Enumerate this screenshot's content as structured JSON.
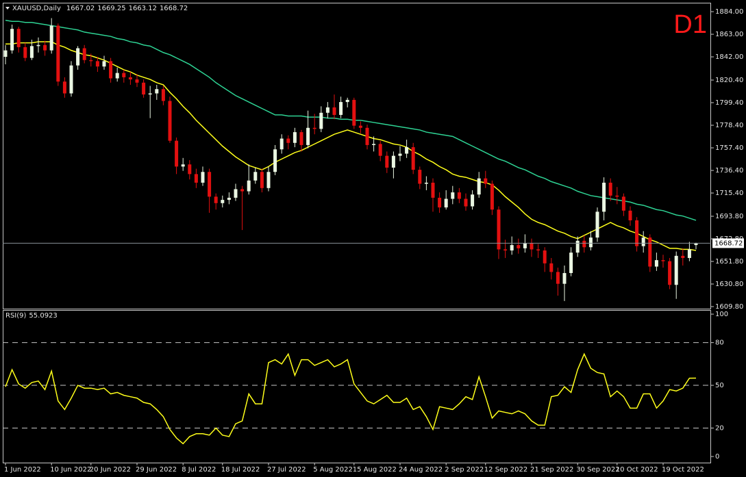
{
  "header": {
    "symbol": "XAUUSD,Daily"
  },
  "timeframe_label": "D1",
  "chart_data": [
    {
      "type": "candlestick",
      "categories": [
        "1 Jun 2022",
        null,
        null,
        null,
        null,
        null,
        null,
        "10 Jun 2022",
        null,
        null,
        null,
        null,
        null,
        "20 Jun 2022",
        null,
        null,
        null,
        null,
        null,
        null,
        "29 Jun 2022",
        null,
        null,
        null,
        null,
        null,
        null,
        "8 Jul 2022",
        null,
        null,
        null,
        null,
        null,
        "18 Jul 2022",
        null,
        null,
        null,
        null,
        null,
        null,
        "27 Jul 2022",
        null,
        null,
        null,
        null,
        null,
        null,
        "5 Aug 2022",
        null,
        null,
        null,
        null,
        null,
        "15 Aug 2022",
        null,
        null,
        null,
        null,
        null,
        null,
        "24 Aug 2022",
        null,
        null,
        null,
        null,
        null,
        null,
        "2 Sep 2022",
        null,
        null,
        null,
        null,
        null,
        "12 Sep 2022",
        null,
        null,
        null,
        null,
        null,
        null,
        "21 Sep 2022",
        null,
        null,
        null,
        null,
        null,
        null,
        "30 Sep 2022",
        null,
        null,
        null,
        null,
        null,
        "10 Oct 2022",
        null,
        null,
        null,
        null,
        null,
        null,
        "19 Oct 2022",
        null,
        null,
        null,
        null,
        null
      ],
      "open": [
        1842,
        1848,
        1868,
        1851,
        1841,
        1852,
        1853,
        1848,
        1871,
        1819,
        1808,
        1834,
        1850,
        1839,
        1838,
        1833,
        1838,
        1822,
        1827,
        1823,
        1821,
        1818,
        1807,
        1808,
        1812,
        1801,
        1764,
        1740,
        1742,
        1733,
        1725,
        1735,
        1712,
        1706,
        1709,
        1711,
        1719,
        1717,
        1727,
        1735,
        1720,
        1735,
        1756,
        1766,
        1762,
        1772,
        1760,
        1776,
        1775,
        1790,
        1795,
        1788,
        1800,
        1802,
        1778,
        1776,
        1760,
        1761,
        1750,
        1739,
        1750,
        1752,
        1758,
        1737,
        1724,
        1725,
        1711,
        1702,
        1710,
        1716,
        1710,
        1703,
        1714,
        1729,
        1724,
        1700,
        1663,
        1662,
        1667,
        1664,
        1669,
        1663,
        1662,
        1650,
        1642,
        1631,
        1641,
        1660,
        1671,
        1665,
        1674,
        1698,
        1725,
        1713,
        1712,
        1699,
        1690,
        1666,
        1674,
        1647,
        1653,
        1652,
        1630,
        1657,
        1655,
        1667.02
      ],
      "high": [
        1853,
        1872,
        1870,
        1855,
        1858,
        1860,
        1857,
        1878,
        1873,
        1823,
        1838,
        1852,
        1853,
        1845,
        1842,
        1843,
        1841,
        1832,
        1830,
        1828,
        1826,
        1821,
        1815,
        1816,
        1815,
        1805,
        1767,
        1748,
        1746,
        1738,
        1740,
        1738,
        1715,
        1713,
        1716,
        1724,
        1722,
        1742,
        1739,
        1738,
        1740,
        1760,
        1770,
        1769,
        1776,
        1774,
        1792,
        1789,
        1796,
        1800,
        1807,
        1805,
        1804,
        1804,
        1782,
        1779,
        1768,
        1764,
        1754,
        1754,
        1759,
        1765,
        1762,
        1740,
        1731,
        1729,
        1716,
        1718,
        1722,
        1720,
        1715,
        1718,
        1735,
        1736,
        1727,
        1703,
        1672,
        1675,
        1673,
        1677,
        1673,
        1668,
        1665,
        1655,
        1646,
        1648,
        1665,
        1675,
        1676,
        1680,
        1702,
        1730,
        1729,
        1721,
        1715,
        1703,
        1693,
        1680,
        1677,
        1660,
        1658,
        1655,
        1661,
        1664,
        1670,
        1669.25
      ],
      "low": [
        1835,
        1845,
        1846,
        1838,
        1839,
        1846,
        1843,
        1845,
        1815,
        1804,
        1805,
        1830,
        1836,
        1833,
        1828,
        1830,
        1818,
        1819,
        1818,
        1816,
        1814,
        1804,
        1785,
        1802,
        1797,
        1762,
        1733,
        1736,
        1728,
        1720,
        1722,
        1697,
        1700,
        1702,
        1705,
        1708,
        1681,
        1714,
        1724,
        1716,
        1717,
        1732,
        1752,
        1756,
        1758,
        1754,
        1757,
        1770,
        1772,
        1785,
        1784,
        1785,
        1795,
        1775,
        1771,
        1756,
        1754,
        1745,
        1734,
        1729,
        1745,
        1748,
        1733,
        1719,
        1718,
        1698,
        1697,
        1700,
        1705,
        1706,
        1699,
        1700,
        1711,
        1720,
        1695,
        1654,
        1655,
        1658,
        1659,
        1660,
        1656,
        1655,
        1642,
        1635,
        1620,
        1615,
        1638,
        1656,
        1660,
        1662,
        1670,
        1690,
        1708,
        1705,
        1694,
        1685,
        1661,
        1660,
        1642,
        1643,
        1646,
        1626,
        1617,
        1648,
        1652,
        1663.12
      ],
      "close": [
        1848,
        1868,
        1851,
        1841,
        1852,
        1853,
        1848,
        1871,
        1819,
        1808,
        1834,
        1850,
        1839,
        1838,
        1833,
        1838,
        1822,
        1827,
        1823,
        1821,
        1818,
        1807,
        1808,
        1812,
        1801,
        1764,
        1740,
        1742,
        1733,
        1725,
        1735,
        1712,
        1706,
        1709,
        1711,
        1719,
        1717,
        1727,
        1735,
        1720,
        1735,
        1756,
        1766,
        1762,
        1772,
        1760,
        1776,
        1775,
        1790,
        1795,
        1788,
        1800,
        1802,
        1778,
        1776,
        1760,
        1761,
        1750,
        1739,
        1750,
        1752,
        1758,
        1737,
        1724,
        1725,
        1711,
        1702,
        1710,
        1716,
        1710,
        1703,
        1714,
        1729,
        1724,
        1700,
        1663,
        1662,
        1667,
        1664,
        1669,
        1663,
        1662,
        1650,
        1642,
        1631,
        1641,
        1660,
        1671,
        1665,
        1674,
        1698,
        1725,
        1713,
        1712,
        1699,
        1690,
        1666,
        1674,
        1647,
        1653,
        1652,
        1630,
        1657,
        1655,
        1663,
        1668.72
      ],
      "up_color": "#eaf6e2",
      "down_color": "#e31010",
      "series": [
        {
          "color": "#ffff1a",
          "values": [
            1854,
            1854,
            1855,
            1855,
            1855,
            1856,
            1856,
            1856,
            1853,
            1851,
            1848,
            1846,
            1844,
            1843,
            1841,
            1839,
            1836,
            1833,
            1830,
            1828,
            1825,
            1823,
            1821,
            1818,
            1816,
            1809,
            1803,
            1796,
            1790,
            1783,
            1777,
            1771,
            1765,
            1759,
            1754,
            1749,
            1745,
            1741,
            1739,
            1737,
            1740,
            1744,
            1747,
            1750,
            1753,
            1755,
            1758,
            1761,
            1764,
            1767,
            1770,
            1772,
            1774,
            1772,
            1770,
            1768,
            1766,
            1765,
            1763,
            1761,
            1760,
            1758,
            1754,
            1751,
            1747,
            1744,
            1740,
            1737,
            1733,
            1731,
            1730,
            1728,
            1726,
            1725,
            1723,
            1718,
            1712,
            1707,
            1702,
            1696,
            1691,
            1688,
            1686,
            1683,
            1680,
            1678,
            1675,
            1673,
            1676,
            1679,
            1682,
            1685,
            1688,
            1685,
            1683,
            1680,
            1678,
            1675,
            1672,
            1670,
            1667,
            1664,
            1664,
            1663,
            1663,
            1662
          ]
        },
        {
          "color": "#2ed394",
          "values": [
            1876,
            1875,
            1875,
            1874,
            1874,
            1873,
            1872,
            1871,
            1870,
            1869,
            1868,
            1867,
            1865,
            1864,
            1863,
            1862,
            1861,
            1859,
            1858,
            1856,
            1855,
            1853,
            1852,
            1849,
            1846,
            1844,
            1841,
            1838,
            1835,
            1831,
            1827,
            1823,
            1818,
            1814,
            1810,
            1806,
            1803,
            1800,
            1797,
            1794,
            1791,
            1788,
            1788,
            1787,
            1787,
            1787,
            1786,
            1786,
            1786,
            1785,
            1785,
            1784,
            1784,
            1783,
            1783,
            1782,
            1781,
            1780,
            1779,
            1778,
            1777,
            1776,
            1775,
            1774,
            1772,
            1771,
            1770,
            1769,
            1768,
            1765,
            1762,
            1759,
            1756,
            1753,
            1750,
            1747,
            1745,
            1742,
            1739,
            1737,
            1734,
            1731,
            1729,
            1726,
            1724,
            1722,
            1720,
            1717,
            1715,
            1713,
            1712,
            1711,
            1710,
            1709,
            1708,
            1707,
            1705,
            1704,
            1702,
            1700,
            1699,
            1697,
            1695,
            1694,
            1692,
            1690
          ]
        }
      ],
      "ylim": [
        1607.9,
        1892.3
      ],
      "yticks": [
        {
          "value": 1884,
          "label": "1884.00"
        },
        {
          "value": 1863,
          "label": "1863.00"
        },
        {
          "value": 1842,
          "label": "1842.00"
        },
        {
          "value": 1820.4,
          "label": "1820.40"
        },
        {
          "value": 1799.4,
          "label": "1799.40"
        },
        {
          "value": 1778.4,
          "label": "1778.40"
        },
        {
          "value": 1757.4,
          "label": "1757.40"
        },
        {
          "value": 1736.4,
          "label": "1736.40"
        },
        {
          "value": 1715.4,
          "label": "1715.40"
        },
        {
          "value": 1693.8,
          "label": "1693.80"
        },
        {
          "value": 1672.8,
          "label": "1672.80"
        },
        {
          "value": 1651.8,
          "label": "1651.80"
        },
        {
          "value": 1630.8,
          "label": "1630.80"
        },
        {
          "value": 1609.8,
          "label": "1609.80"
        }
      ],
      "grid": false
    },
    {
      "type": "line",
      "title": "RSI(9)",
      "color": "#ffff1a",
      "values": [
        49,
        61,
        51,
        48,
        52,
        53,
        47,
        60,
        39,
        33,
        41,
        50,
        48,
        48,
        47,
        48,
        44,
        45,
        43,
        42,
        41,
        38,
        37,
        33,
        28,
        19,
        13,
        9,
        14,
        16,
        16,
        15,
        20,
        15,
        14,
        23,
        25,
        44,
        37,
        37,
        66,
        68,
        65,
        72,
        57,
        68,
        68,
        64,
        66,
        68,
        63,
        65,
        68,
        51,
        45,
        39,
        37,
        40,
        43,
        38,
        38,
        41,
        33,
        35,
        28,
        19,
        35,
        34,
        33,
        37,
        42,
        40,
        56,
        42,
        27,
        32,
        31,
        30,
        32,
        30,
        25,
        22,
        22,
        42,
        43,
        49,
        45,
        61,
        72,
        62,
        59,
        58,
        42,
        46,
        42,
        34,
        34,
        44,
        44,
        34,
        39,
        47,
        46,
        48,
        55,
        55.0923
      ],
      "ylim": [
        -4.3,
        102.9
      ],
      "yticks": [
        0,
        20,
        50,
        80,
        100
      ],
      "levels": [
        20,
        50,
        80
      ]
    }
  ]
}
